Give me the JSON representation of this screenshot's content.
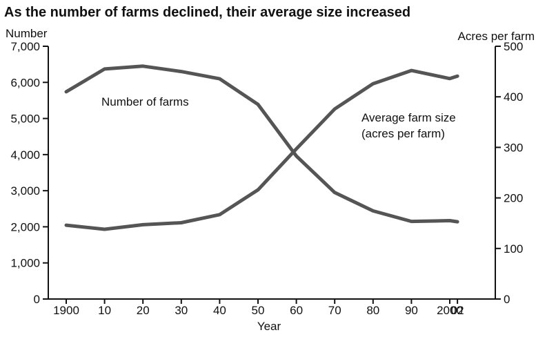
{
  "chart_data": {
    "type": "line",
    "title": "As the number of farms declined, their average size increased",
    "xlabel": "Year",
    "ylabel_left": "Number",
    "ylabel_right": "Acres per farm",
    "categories": [
      "1900",
      "10",
      "20",
      "30",
      "40",
      "50",
      "60",
      "70",
      "80",
      "90",
      "2000",
      "02"
    ],
    "years": [
      1900,
      1910,
      1920,
      1930,
      1940,
      1950,
      1960,
      1970,
      1980,
      1990,
      2000,
      2002
    ],
    "ylim_left": [
      0,
      7000
    ],
    "ylim_right": [
      0,
      500
    ],
    "yticks_left": [
      "0",
      "1,000",
      "2,000",
      "3,000",
      "4,000",
      "5,000",
      "6,000",
      "7,000"
    ],
    "yticks_right": [
      "0",
      "100",
      "200",
      "300",
      "400",
      "500"
    ],
    "grid": false,
    "series": [
      {
        "name": "Number of farms",
        "axis": "left",
        "values": [
          5740,
          6370,
          6450,
          6300,
          6100,
          5390,
          3960,
          2950,
          2440,
          2150,
          2170,
          2140
        ]
      },
      {
        "name": "Average farm size (acres per farm)",
        "label_lines": [
          "Average farm size",
          "(acres per farm)"
        ],
        "axis": "right",
        "values": [
          146,
          138,
          147,
          151,
          167,
          216,
          297,
          376,
          426,
          452,
          436,
          441
        ]
      }
    ],
    "line_color": "#555555",
    "axis_color": "#111111"
  }
}
